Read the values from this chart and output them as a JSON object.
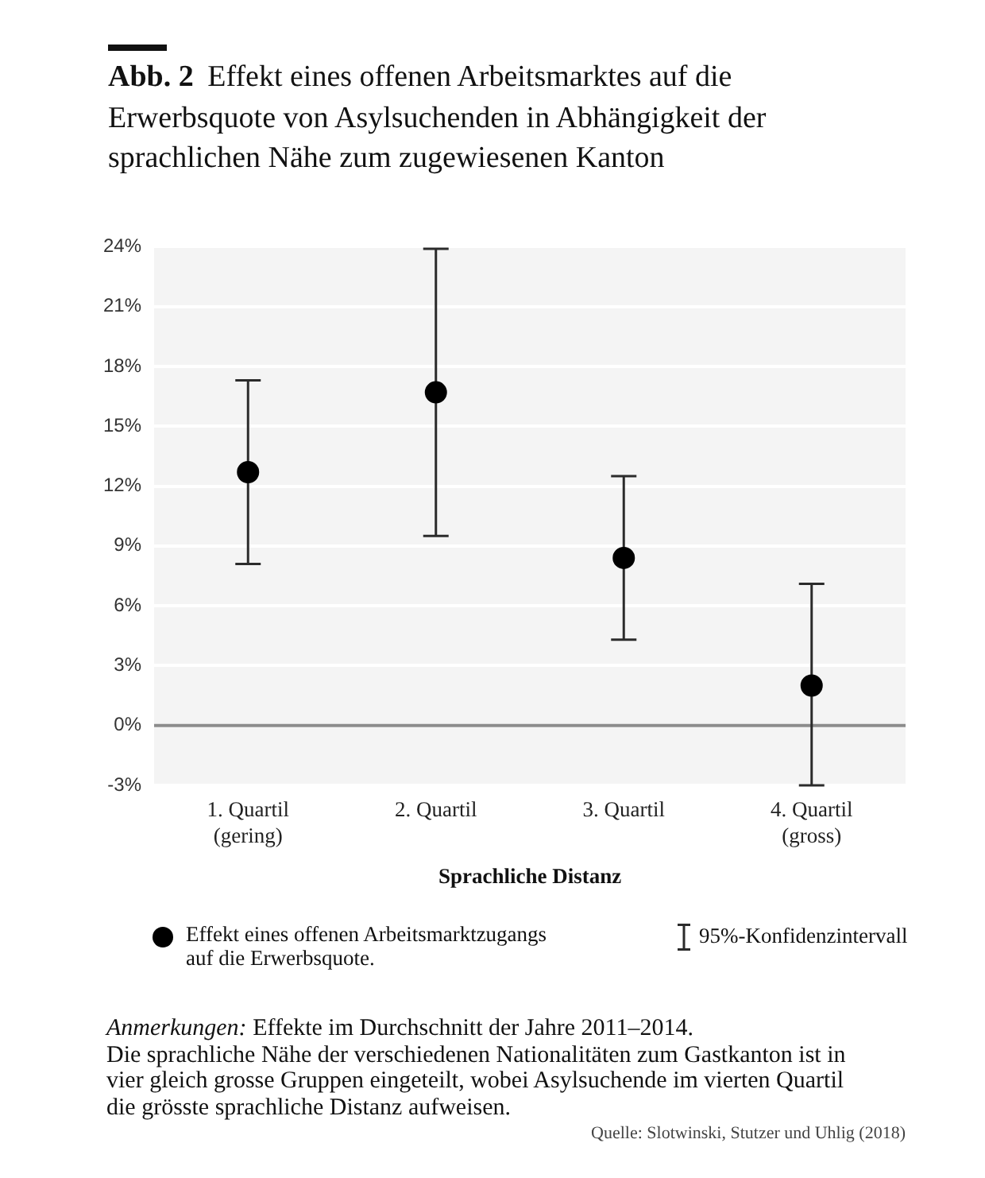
{
  "chart_data": {
    "type": "scatter",
    "title": "Abb. 2 Effekt eines offenen Arbeitsmarktes auf die Erwerbsquote von Asylsuchenden in Abhängigkeit der sprachlichen Nähe zum zugewiesenen Kanton",
    "xlabel": "Sprachliche Distanz",
    "categories": [
      "1. Quartil\n(gering)",
      "2. Quartil",
      "3. Quartil",
      "4. Quartil\n(gross)"
    ],
    "series": [
      {
        "name": "Effekt eines offenen Arbeitsmarktzugangs auf die Erwerbsquote.",
        "color": "#000000",
        "values": [
          12.7,
          16.7,
          8.4,
          2.0
        ],
        "errors": [
          [
            8.1,
            17.3
          ],
          [
            9.5,
            23.9
          ],
          [
            4.3,
            12.5
          ],
          [
            -3.0,
            7.1
          ]
        ]
      }
    ],
    "ylim": [
      -3,
      24
    ],
    "yticks": [
      {
        "value": -3,
        "label": "-3%"
      },
      {
        "value": 0,
        "label": "0%"
      },
      {
        "value": 3,
        "label": "3%"
      },
      {
        "value": 6,
        "label": "6%"
      },
      {
        "value": 9,
        "label": "9%"
      },
      {
        "value": 12,
        "label": "12%"
      },
      {
        "value": 15,
        "label": "15%"
      },
      {
        "value": 18,
        "label": "18%"
      },
      {
        "value": 21,
        "label": "21%"
      },
      {
        "value": 24,
        "label": "24%"
      }
    ],
    "grid": "y",
    "marker": "circle",
    "legend": "bottom",
    "ref_lines": [
      {
        "axis": "y",
        "value": 0,
        "color": "#8c8c8c"
      }
    ],
    "annotations": [
      "95%-Konfidenzintervall",
      "Anmerkungen: Effekte im Durchschnitt der Jahre 2011–2014.",
      "Die sprachliche Nähe der verschiedenen Nationalitäten zum Gastkanton ist in vier gleich grosse Gruppen eingeteilt, wobei Asylsuchende im vierten Quartil die grösste sprachliche Distanz aufweisen.",
      "Quelle: Slotwinski, Stutzer und Uhlig (2018)"
    ]
  }
}
